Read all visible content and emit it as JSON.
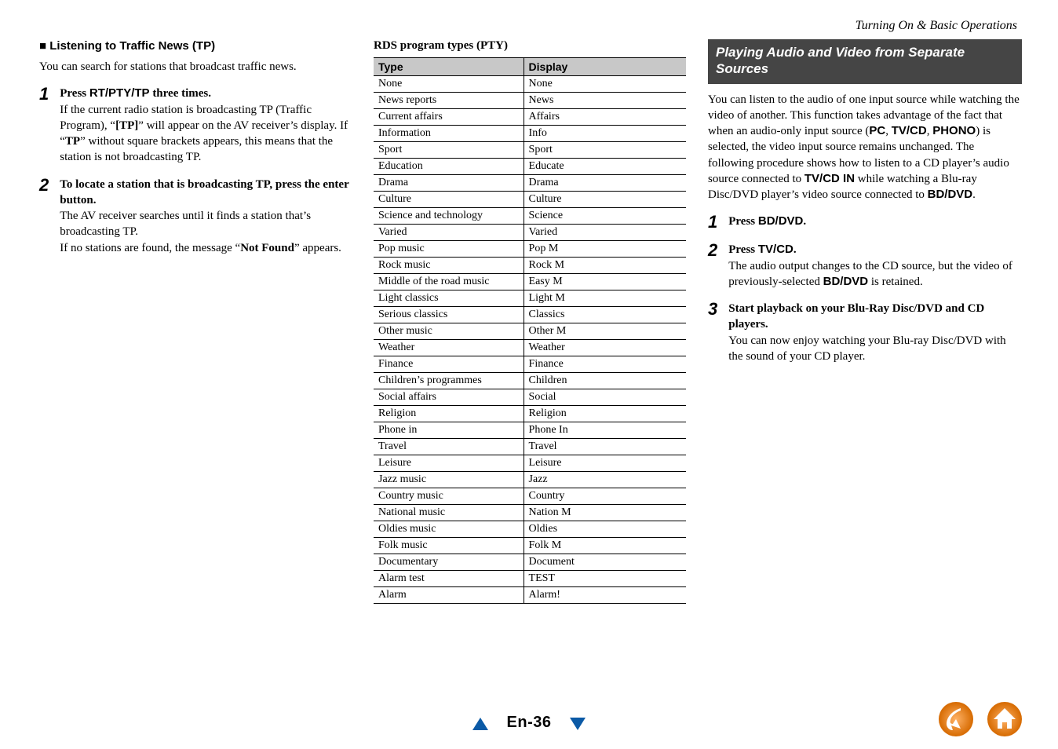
{
  "header": {
    "breadcrumb": "Turning On & Basic Operations"
  },
  "col1": {
    "heading_prefix": "■",
    "heading": "Listening to Traffic News (TP)",
    "intro": "You can search for stations that broadcast traffic news.",
    "steps": [
      {
        "num": "1",
        "lead_before": "Press ",
        "lead_sans": "RT/PTY/TP",
        "lead_after": " three times.",
        "rest": "If the current radio station is broadcasting TP (Traffic Program), “[TP]” will appear on the AV receiver’s display. If “TP” without square brackets appears, this means that the station is not broadcasting TP."
      },
      {
        "num": "2",
        "lead_full": "To locate a station that is broadcasting TP, press the enter button.",
        "rest": "The AV receiver searches until it finds a station that’s broadcasting TP.\nIf no stations are found, the message “Not Found” appears."
      }
    ]
  },
  "col2": {
    "title": "RDS program types (PTY)",
    "table": {
      "headers": [
        "Type",
        "Display"
      ],
      "rows": [
        [
          "None",
          "None"
        ],
        [
          "News reports",
          "News"
        ],
        [
          "Current affairs",
          "Affairs"
        ],
        [
          "Information",
          "Info"
        ],
        [
          "Sport",
          "Sport"
        ],
        [
          "Education",
          "Educate"
        ],
        [
          "Drama",
          "Drama"
        ],
        [
          "Culture",
          "Culture"
        ],
        [
          "Science and technology",
          "Science"
        ],
        [
          "Varied",
          "Varied"
        ],
        [
          "Pop music",
          "Pop M"
        ],
        [
          "Rock music",
          "Rock M"
        ],
        [
          "Middle of the road music",
          "Easy M"
        ],
        [
          "Light classics",
          "Light M"
        ],
        [
          "Serious classics",
          "Classics"
        ],
        [
          "Other music",
          "Other M"
        ],
        [
          "Weather",
          "Weather"
        ],
        [
          "Finance",
          "Finance"
        ],
        [
          "Children’s programmes",
          "Children"
        ],
        [
          "Social affairs",
          "Social"
        ],
        [
          "Religion",
          "Religion"
        ],
        [
          "Phone in",
          "Phone In"
        ],
        [
          "Travel",
          "Travel"
        ],
        [
          "Leisure",
          "Leisure"
        ],
        [
          "Jazz music",
          "Jazz"
        ],
        [
          "Country music",
          "Country"
        ],
        [
          "National music",
          "Nation M"
        ],
        [
          "Oldies music",
          "Oldies"
        ],
        [
          "Folk music",
          "Folk M"
        ],
        [
          "Documentary",
          "Document"
        ],
        [
          "Alarm test",
          "TEST"
        ],
        [
          "Alarm",
          "Alarm!"
        ]
      ]
    }
  },
  "col3": {
    "banner": "Playing Audio and Video from Separate Sources",
    "intro_parts": [
      "You can listen to the audio of one input source while watching the video of another. This function takes advantage of the fact that when an audio-only input source (",
      "PC",
      ", ",
      "TV/CD",
      ", ",
      "PHONO",
      ") is selected, the video input source remains unchanged. The following procedure shows how to listen to a CD player’s audio source connected to ",
      "TV/CD IN",
      " while watching a Blu-ray Disc/DVD player’s video source connected to ",
      "BD/DVD",
      "."
    ],
    "steps": [
      {
        "num": "1",
        "lead_before": "Press ",
        "lead_sans": "BD/DVD",
        "lead_after": "."
      },
      {
        "num": "2",
        "lead_before": "Press ",
        "lead_sans": "TV/CD",
        "lead_after": ".",
        "rest_before": "The audio output changes to the CD source, but the video of previously-selected ",
        "rest_sans": "BD/DVD",
        "rest_after": " is retained."
      },
      {
        "num": "3",
        "lead_full": "Start playback on your Blu-Ray Disc/DVD and CD players.",
        "rest_plain": "You can now enjoy watching your Blu-ray Disc/DVD with the sound of your CD player."
      }
    ]
  },
  "footer": {
    "page": "En-36"
  },
  "colors": {
    "banner_bg": "#454545",
    "accent": "#0b5aa6",
    "orange": "#f58220",
    "orange_dark": "#d66a00",
    "table_header_bg": "#c8c8c8"
  }
}
